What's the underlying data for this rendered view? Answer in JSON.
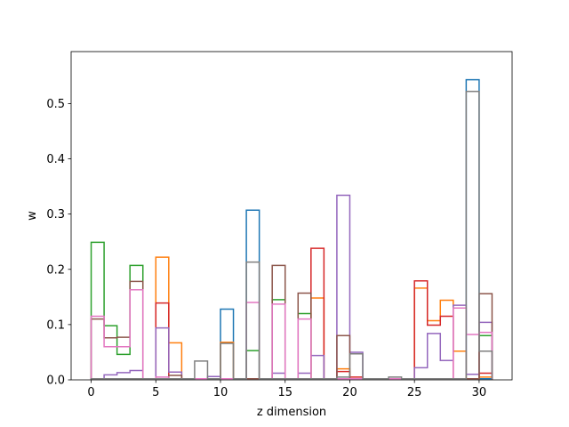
{
  "chart_data": {
    "type": "step",
    "xlabel": "z dimension",
    "ylabel": "w",
    "xlim": [
      -1.55,
      32.55
    ],
    "ylim": [
      0,
      0.594
    ],
    "xticks": [
      0,
      5,
      10,
      15,
      20,
      25,
      30
    ],
    "yticks": [
      0.0,
      0.1,
      0.2,
      0.3,
      0.4,
      0.5
    ],
    "xtick_labels": [
      "0",
      "5",
      "10",
      "15",
      "20",
      "25",
      "30"
    ],
    "ytick_labels": [
      "0.0",
      "0.1",
      "0.2",
      "0.3",
      "0.4",
      "0.5"
    ],
    "bin_edges": [
      0,
      1,
      2,
      3,
      4,
      5,
      6,
      7,
      8,
      9,
      10,
      11,
      12,
      13,
      14,
      15,
      16,
      17,
      18,
      19,
      20,
      21,
      22,
      23,
      24,
      25,
      26,
      27,
      28,
      29,
      30,
      31
    ],
    "series": [
      {
        "color": "#1f77b4",
        "values": [
          0.002,
          0.002,
          0.002,
          0.002,
          0.002,
          0.002,
          0.002,
          0.002,
          0.002,
          0.002,
          0.128,
          0.002,
          0.307,
          0.002,
          0.002,
          0.002,
          0.002,
          0.002,
          0.002,
          0.002,
          0.002,
          0.002,
          0.002,
          0.002,
          0.002,
          0.002,
          0.002,
          0.002,
          0.002,
          0.543,
          0.002
        ]
      },
      {
        "color": "#ff7f0e",
        "values": [
          0.002,
          0.002,
          0.002,
          0.002,
          0.002,
          0.222,
          0.067,
          0.002,
          0.002,
          0.002,
          0.068,
          0.002,
          0.002,
          0.002,
          0.002,
          0.002,
          0.002,
          0.148,
          0.002,
          0.02,
          0.002,
          0.002,
          0.002,
          0.002,
          0.002,
          0.166,
          0.107,
          0.144,
          0.052,
          0.002,
          0.005
        ]
      },
      {
        "color": "#2ca02c",
        "values": [
          0.249,
          0.098,
          0.046,
          0.207,
          0.002,
          0.002,
          0.002,
          0.002,
          0.002,
          0.002,
          0.002,
          0.002,
          0.053,
          0.002,
          0.145,
          0.002,
          0.12,
          0.002,
          0.002,
          0.002,
          0.002,
          0.002,
          0.002,
          0.002,
          0.002,
          0.002,
          0.002,
          0.002,
          0.002,
          0.002,
          0.08
        ]
      },
      {
        "color": "#d62728",
        "values": [
          0.002,
          0.002,
          0.002,
          0.002,
          0.002,
          0.139,
          0.002,
          0.002,
          0.002,
          0.002,
          0.002,
          0.002,
          0.002,
          0.002,
          0.002,
          0.002,
          0.002,
          0.238,
          0.002,
          0.015,
          0.005,
          0.002,
          0.002,
          0.002,
          0.002,
          0.179,
          0.099,
          0.115,
          0.002,
          0.002,
          0.012
        ]
      },
      {
        "color": "#9467bd",
        "values": [
          0.002,
          0.009,
          0.013,
          0.017,
          0.002,
          0.094,
          0.014,
          0.002,
          0.002,
          0.006,
          0.002,
          0.002,
          0.002,
          0.002,
          0.012,
          0.002,
          0.012,
          0.044,
          0.002,
          0.334,
          0.05,
          0.002,
          0.002,
          0.002,
          0.002,
          0.022,
          0.084,
          0.035,
          0.135,
          0.01,
          0.104
        ]
      },
      {
        "color": "#8c564b",
        "values": [
          0.11,
          0.076,
          0.077,
          0.178,
          0.002,
          0.002,
          0.008,
          0.002,
          0.002,
          0.002,
          0.002,
          0.002,
          0.002,
          0.002,
          0.207,
          0.002,
          0.157,
          0.002,
          0.002,
          0.08,
          0.002,
          0.002,
          0.002,
          0.002,
          0.002,
          0.002,
          0.002,
          0.002,
          0.002,
          0.002,
          0.156
        ]
      },
      {
        "color": "#e377c2",
        "values": [
          0.115,
          0.06,
          0.06,
          0.163,
          0.002,
          0.005,
          0.002,
          0.002,
          0.002,
          0.002,
          0.002,
          0.002,
          0.14,
          0.002,
          0.137,
          0.002,
          0.11,
          0.002,
          0.002,
          0.002,
          0.002,
          0.002,
          0.002,
          0.002,
          0.002,
          0.002,
          0.002,
          0.002,
          0.13,
          0.082,
          0.086
        ]
      },
      {
        "color": "#7f7f7f",
        "values": [
          0.002,
          0.002,
          0.002,
          0.002,
          0.002,
          0.002,
          0.002,
          0.002,
          0.034,
          0.002,
          0.066,
          0.002,
          0.213,
          0.002,
          0.002,
          0.002,
          0.002,
          0.002,
          0.002,
          0.005,
          0.047,
          0.002,
          0.002,
          0.005,
          0.002,
          0.002,
          0.002,
          0.002,
          0.002,
          0.522,
          0.052
        ]
      }
    ]
  }
}
